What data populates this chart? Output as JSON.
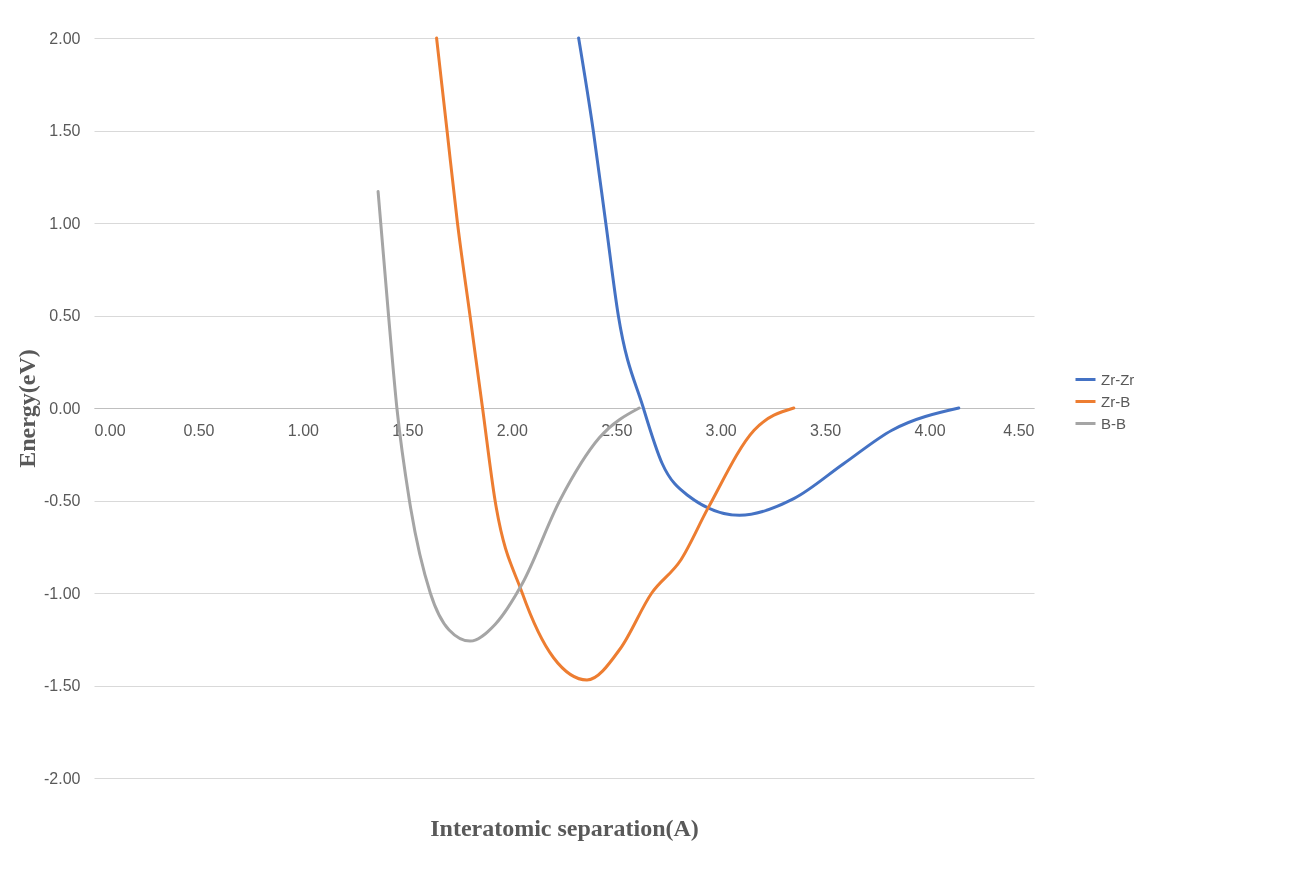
{
  "chart_data": {
    "type": "line",
    "xlabel": "Interatomic separation(A)",
    "ylabel": "Energy(eV)",
    "xlim": [
      0,
      4.5
    ],
    "xticks": [
      {
        "value": 0,
        "label": "0.00"
      },
      {
        "value": 0.5,
        "label": "0.50"
      },
      {
        "value": 1,
        "label": "1.00"
      },
      {
        "value": 1.5,
        "label": "1.50"
      },
      {
        "value": 2,
        "label": "2.00"
      },
      {
        "value": 2.5,
        "label": "2.50"
      },
      {
        "value": 3,
        "label": "3.00"
      },
      {
        "value": 3.5,
        "label": "3.50"
      },
      {
        "value": 4,
        "label": "4.00"
      },
      {
        "value": 4.5,
        "label": "4.50"
      }
    ],
    "ylim": [
      -2,
      2
    ],
    "yticks": [
      {
        "value": -2,
        "label": "-2.00"
      },
      {
        "value": -1.5,
        "label": "-1.50"
      },
      {
        "value": -1,
        "label": "-1.00"
      },
      {
        "value": -0.5,
        "label": "-0.50"
      },
      {
        "value": 0,
        "label": "0.00"
      },
      {
        "value": 0.5,
        "label": "0.50"
      },
      {
        "value": 1,
        "label": "1.00"
      },
      {
        "value": 1.5,
        "label": "1.50"
      },
      {
        "value": 2,
        "label": "2.00"
      }
    ],
    "grid": "y",
    "legend": "right",
    "marker": "none",
    "line_style": "solid",
    "series": [
      {
        "name": "Zr-Zr",
        "color": "#4472c4",
        "x": [
          2.32,
          2.39,
          2.45,
          2.51,
          2.63,
          2.72,
          2.84,
          3.09,
          3.35,
          3.59,
          3.82,
          4.14
        ],
        "values": [
          2.0,
          1.5,
          1.0,
          0.5,
          0.0,
          -0.3,
          -0.47,
          -0.58,
          -0.49,
          -0.3,
          -0.12,
          0.0
        ]
      },
      {
        "name": "Zr-B",
        "color": "#ed7d31",
        "x": [
          1.64,
          1.69,
          1.74,
          1.8,
          1.86,
          1.92,
          2.05,
          2.2,
          2.36,
          2.52,
          2.67,
          2.81,
          2.94,
          3.16,
          3.35
        ],
        "values": [
          2.0,
          1.5,
          1.0,
          0.5,
          0.0,
          -0.5,
          -1.0,
          -1.35,
          -1.47,
          -1.3,
          -1.0,
          -0.82,
          -0.54,
          -0.12,
          0.0
        ]
      },
      {
        "name": "B-B",
        "color": "#a5a5a5",
        "x": [
          1.36,
          1.41,
          1.45,
          1.51,
          1.61,
          1.7,
          1.8,
          1.92,
          2.05,
          2.23,
          2.42,
          2.61
        ],
        "values": [
          1.17,
          0.5,
          0.0,
          -0.5,
          -1.0,
          -1.2,
          -1.26,
          -1.17,
          -0.95,
          -0.5,
          -0.16,
          0.0
        ]
      }
    ]
  }
}
